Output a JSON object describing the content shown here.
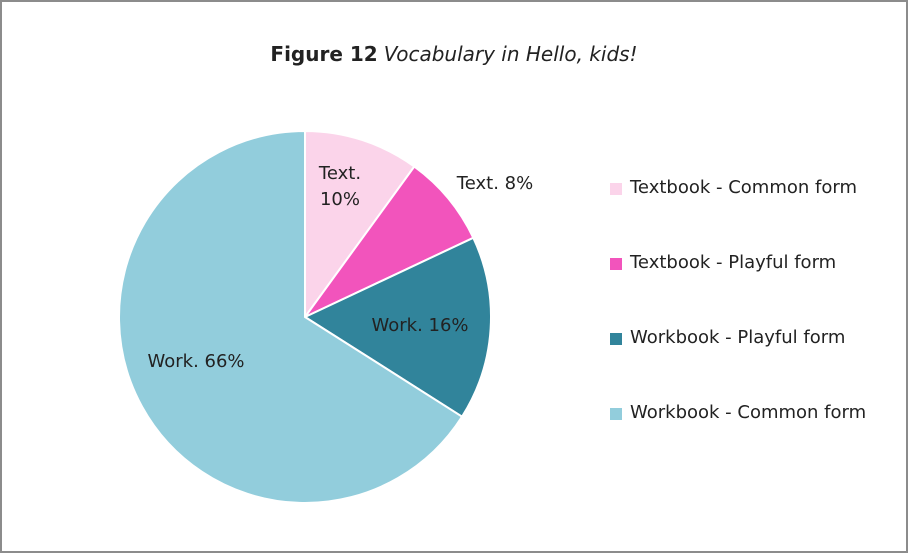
{
  "chart_data": {
    "type": "pie",
    "title": "Figure 12",
    "subtitle": "Vocabulary in Hello, kids!",
    "categories": [
      "Textbook - Common form",
      "Textbook - Playful form",
      "Workbook - Playful form",
      "Workbook - Common form"
    ],
    "values": [
      10,
      8,
      16,
      66
    ],
    "value_labels": [
      "Text. 10%",
      "Text. 8%",
      "Work. 16%",
      "Work. 66%"
    ],
    "colors": [
      "#fbd4ea",
      "#f254bc",
      "#31849b",
      "#92cddc"
    ],
    "legend": "right"
  }
}
